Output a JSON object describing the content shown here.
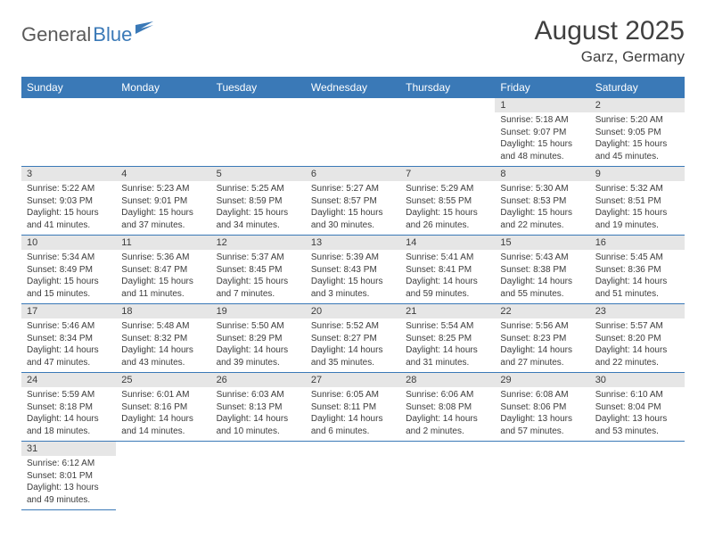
{
  "brand": {
    "part1": "General",
    "part2": "Blue"
  },
  "title": "August 2025",
  "location": "Garz, Germany",
  "colors": {
    "accent": "#3a79b7",
    "header_text": "#ffffff",
    "daynum_bg": "#e6e6e6",
    "text": "#3c3c3c",
    "title_text": "#404040"
  },
  "columns": [
    "Sunday",
    "Monday",
    "Tuesday",
    "Wednesday",
    "Thursday",
    "Friday",
    "Saturday"
  ],
  "weeks": [
    [
      null,
      null,
      null,
      null,
      null,
      {
        "n": "1",
        "sunrise": "5:18 AM",
        "sunset": "9:07 PM",
        "day_h": 15,
        "day_m": 48
      },
      {
        "n": "2",
        "sunrise": "5:20 AM",
        "sunset": "9:05 PM",
        "day_h": 15,
        "day_m": 45
      }
    ],
    [
      {
        "n": "3",
        "sunrise": "5:22 AM",
        "sunset": "9:03 PM",
        "day_h": 15,
        "day_m": 41
      },
      {
        "n": "4",
        "sunrise": "5:23 AM",
        "sunset": "9:01 PM",
        "day_h": 15,
        "day_m": 37
      },
      {
        "n": "5",
        "sunrise": "5:25 AM",
        "sunset": "8:59 PM",
        "day_h": 15,
        "day_m": 34
      },
      {
        "n": "6",
        "sunrise": "5:27 AM",
        "sunset": "8:57 PM",
        "day_h": 15,
        "day_m": 30
      },
      {
        "n": "7",
        "sunrise": "5:29 AM",
        "sunset": "8:55 PM",
        "day_h": 15,
        "day_m": 26
      },
      {
        "n": "8",
        "sunrise": "5:30 AM",
        "sunset": "8:53 PM",
        "day_h": 15,
        "day_m": 22
      },
      {
        "n": "9",
        "sunrise": "5:32 AM",
        "sunset": "8:51 PM",
        "day_h": 15,
        "day_m": 19
      }
    ],
    [
      {
        "n": "10",
        "sunrise": "5:34 AM",
        "sunset": "8:49 PM",
        "day_h": 15,
        "day_m": 15
      },
      {
        "n": "11",
        "sunrise": "5:36 AM",
        "sunset": "8:47 PM",
        "day_h": 15,
        "day_m": 11
      },
      {
        "n": "12",
        "sunrise": "5:37 AM",
        "sunset": "8:45 PM",
        "day_h": 15,
        "day_m": 7
      },
      {
        "n": "13",
        "sunrise": "5:39 AM",
        "sunset": "8:43 PM",
        "day_h": 15,
        "day_m": 3
      },
      {
        "n": "14",
        "sunrise": "5:41 AM",
        "sunset": "8:41 PM",
        "day_h": 14,
        "day_m": 59
      },
      {
        "n": "15",
        "sunrise": "5:43 AM",
        "sunset": "8:38 PM",
        "day_h": 14,
        "day_m": 55
      },
      {
        "n": "16",
        "sunrise": "5:45 AM",
        "sunset": "8:36 PM",
        "day_h": 14,
        "day_m": 51
      }
    ],
    [
      {
        "n": "17",
        "sunrise": "5:46 AM",
        "sunset": "8:34 PM",
        "day_h": 14,
        "day_m": 47
      },
      {
        "n": "18",
        "sunrise": "5:48 AM",
        "sunset": "8:32 PM",
        "day_h": 14,
        "day_m": 43
      },
      {
        "n": "19",
        "sunrise": "5:50 AM",
        "sunset": "8:29 PM",
        "day_h": 14,
        "day_m": 39
      },
      {
        "n": "20",
        "sunrise": "5:52 AM",
        "sunset": "8:27 PM",
        "day_h": 14,
        "day_m": 35
      },
      {
        "n": "21",
        "sunrise": "5:54 AM",
        "sunset": "8:25 PM",
        "day_h": 14,
        "day_m": 31
      },
      {
        "n": "22",
        "sunrise": "5:56 AM",
        "sunset": "8:23 PM",
        "day_h": 14,
        "day_m": 27
      },
      {
        "n": "23",
        "sunrise": "5:57 AM",
        "sunset": "8:20 PM",
        "day_h": 14,
        "day_m": 22
      }
    ],
    [
      {
        "n": "24",
        "sunrise": "5:59 AM",
        "sunset": "8:18 PM",
        "day_h": 14,
        "day_m": 18
      },
      {
        "n": "25",
        "sunrise": "6:01 AM",
        "sunset": "8:16 PM",
        "day_h": 14,
        "day_m": 14
      },
      {
        "n": "26",
        "sunrise": "6:03 AM",
        "sunset": "8:13 PM",
        "day_h": 14,
        "day_m": 10
      },
      {
        "n": "27",
        "sunrise": "6:05 AM",
        "sunset": "8:11 PM",
        "day_h": 14,
        "day_m": 6
      },
      {
        "n": "28",
        "sunrise": "6:06 AM",
        "sunset": "8:08 PM",
        "day_h": 14,
        "day_m": 2
      },
      {
        "n": "29",
        "sunrise": "6:08 AM",
        "sunset": "8:06 PM",
        "day_h": 13,
        "day_m": 57
      },
      {
        "n": "30",
        "sunrise": "6:10 AM",
        "sunset": "8:04 PM",
        "day_h": 13,
        "day_m": 53
      }
    ],
    [
      {
        "n": "31",
        "sunrise": "6:12 AM",
        "sunset": "8:01 PM",
        "day_h": 13,
        "day_m": 49
      },
      null,
      null,
      null,
      null,
      null,
      null
    ]
  ],
  "labels": {
    "sunrise": "Sunrise:",
    "sunset": "Sunset:",
    "daylight": "Daylight:",
    "hours": "hours",
    "and": "and",
    "minutes": "minutes."
  }
}
